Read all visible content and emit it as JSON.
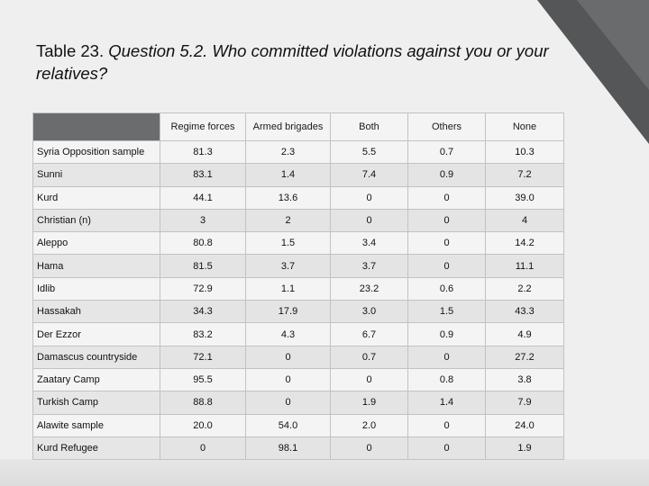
{
  "title": {
    "prefix": "Table 23. ",
    "question": "Question 5.2. Who committed violations against you or your relatives?"
  },
  "table": {
    "columns": [
      "Regime forces",
      "Armed brigades",
      "Both",
      "Others",
      "None"
    ],
    "rows": [
      {
        "label": "Syria Opposition sample",
        "values": [
          "81.3",
          "2.3",
          "5.5",
          "0.7",
          "10.3"
        ]
      },
      {
        "label": "Sunni",
        "values": [
          "83.1",
          "1.4",
          "7.4",
          "0.9",
          "7.2"
        ]
      },
      {
        "label": "Kurd",
        "values": [
          "44.1",
          "13.6",
          "0",
          "0",
          "39.0"
        ]
      },
      {
        "label": "Christian (n)",
        "values": [
          "3",
          "2",
          "0",
          "0",
          "4"
        ]
      },
      {
        "label": "Aleppo",
        "values": [
          "80.8",
          "1.5",
          "3.4",
          "0",
          "14.2"
        ]
      },
      {
        "label": "Hama",
        "values": [
          "81.5",
          "3.7",
          "3.7",
          "0",
          "11.1"
        ]
      },
      {
        "label": "Idlib",
        "values": [
          "72.9",
          "1.1",
          "23.2",
          "0.6",
          "2.2"
        ]
      },
      {
        "label": "Hassakah",
        "values": [
          "34.3",
          "17.9",
          "3.0",
          "1.5",
          "43.3"
        ]
      },
      {
        "label": "Der Ezzor",
        "values": [
          "83.2",
          "4.3",
          "6.7",
          "0.9",
          "4.9"
        ]
      },
      {
        "label": "Damascus countryside",
        "values": [
          "72.1",
          "0",
          "0.7",
          "0",
          "27.2"
        ]
      },
      {
        "label": "Zaatary Camp",
        "values": [
          "95.5",
          "0",
          "0",
          "0.8",
          "3.8"
        ]
      },
      {
        "label": "Turkish Camp",
        "values": [
          "88.8",
          "0",
          "1.9",
          "1.4",
          "7.9"
        ]
      },
      {
        "label": "Alawite sample",
        "values": [
          "20.0",
          "54.0",
          "2.0",
          "0",
          "24.0"
        ]
      },
      {
        "label": "Kurd Refugee",
        "values": [
          "0",
          "98.1",
          "0",
          "0",
          "1.9"
        ]
      }
    ]
  }
}
